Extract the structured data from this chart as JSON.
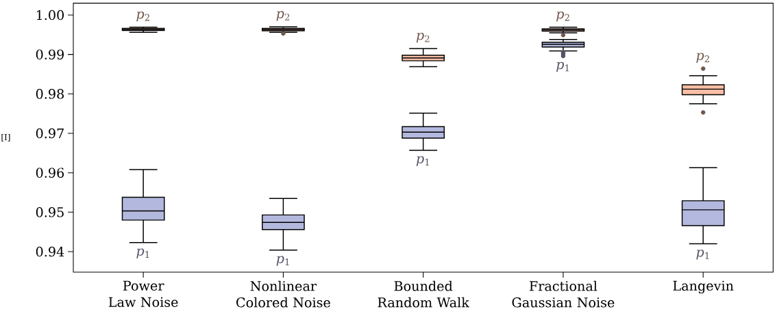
{
  "chart_data": {
    "type": "box",
    "ylabel": "[I]",
    "categories": [
      "Power Law Noise",
      "Nonlinear Colored Noise",
      "Bounded Random Walk",
      "Fractional Gaussian Noise",
      "Langevin"
    ],
    "ylim": [
      0.9348,
      1.003
    ],
    "yticks": [
      0.94,
      0.95,
      0.96,
      0.97,
      0.98,
      0.99,
      {
        "value": 1.0,
        "label": "1.00"
      }
    ],
    "grid": false,
    "series": [
      {
        "name": "*p*$_{1}$",
        "color": "#b3b8de",
        "boxes": [
          {
            "low": 0.9423,
            "q1": 0.948,
            "median": 0.9503,
            "q3": 0.9538,
            "high": 0.9608
          },
          {
            "low": 0.9404,
            "q1": 0.9456,
            "median": 0.9474,
            "q3": 0.9493,
            "high": 0.9535
          },
          {
            "low": 0.9657,
            "q1": 0.9688,
            "median": 0.9703,
            "q3": 0.9717,
            "high": 0.9751
          },
          {
            "low": 0.9909,
            "q1": 0.9919,
            "median": 0.9926,
            "q3": 0.9931,
            "high": 0.9938,
            "outliers": [
              0.9905,
              0.9901,
              0.9896
            ]
          },
          {
            "low": 0.942,
            "q1": 0.9466,
            "median": 0.9506,
            "q3": 0.9529,
            "high": 0.9613
          }
        ]
      },
      {
        "name": "*p*$_{2}$",
        "color": "#f9bea6",
        "boxes": [
          {
            "low": 0.9956,
            "q1": 0.9961,
            "median": 0.9963,
            "q3": 0.9966,
            "high": 0.9969
          },
          {
            "low": 0.9956,
            "q1": 0.996,
            "median": 0.9963,
            "q3": 0.9966,
            "high": 0.997,
            "outliers": [
              0.9953
            ]
          },
          {
            "low": 0.9869,
            "q1": 0.9884,
            "median": 0.9891,
            "q3": 0.9898,
            "high": 0.9915
          },
          {
            "low": 0.9955,
            "q1": 0.9959,
            "median": 0.9962,
            "q3": 0.9965,
            "high": 0.9969,
            "outliers": [
              0.9949
            ]
          },
          {
            "low": 0.9775,
            "q1": 0.9798,
            "median": 0.9812,
            "q3": 0.9823,
            "high": 0.9846,
            "outliers": [
              0.9864,
              0.9753
            ]
          }
        ]
      }
    ]
  }
}
